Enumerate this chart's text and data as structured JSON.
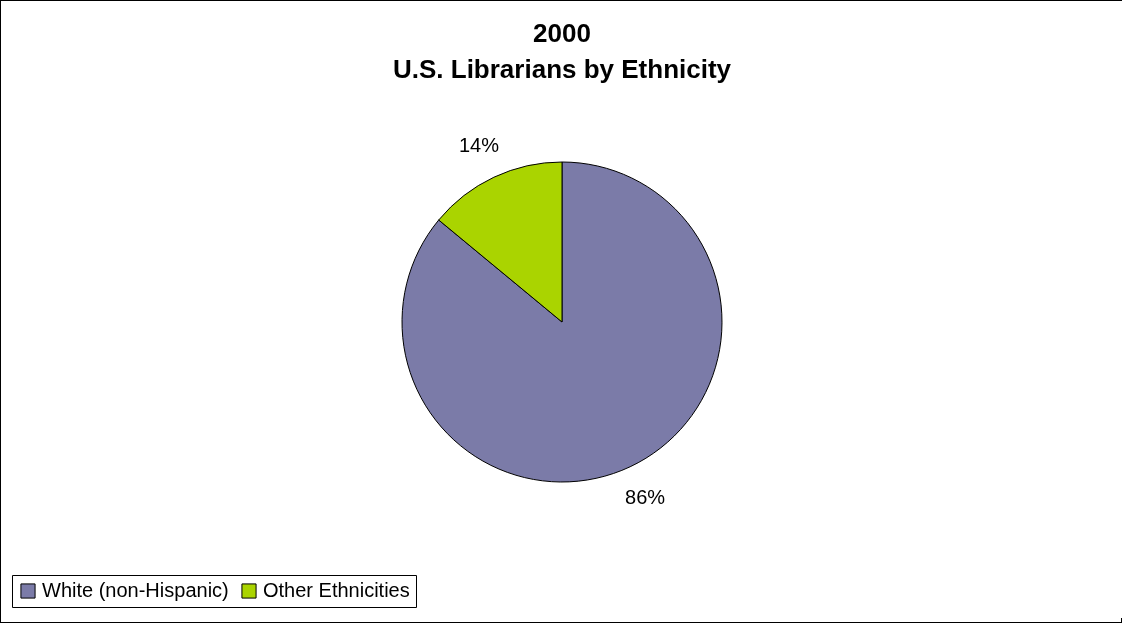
{
  "chart_data": {
    "type": "pie",
    "title": "2000",
    "subtitle": "U.S. Librarians by Ethnicity",
    "categories": [
      "White (non-Hispanic)",
      "Other Ethnicities"
    ],
    "values": [
      86,
      14
    ],
    "colors": [
      "#7b7ba8",
      "#aad400"
    ],
    "value_labels": [
      "86%",
      "14%"
    ],
    "legend": "bottom"
  }
}
